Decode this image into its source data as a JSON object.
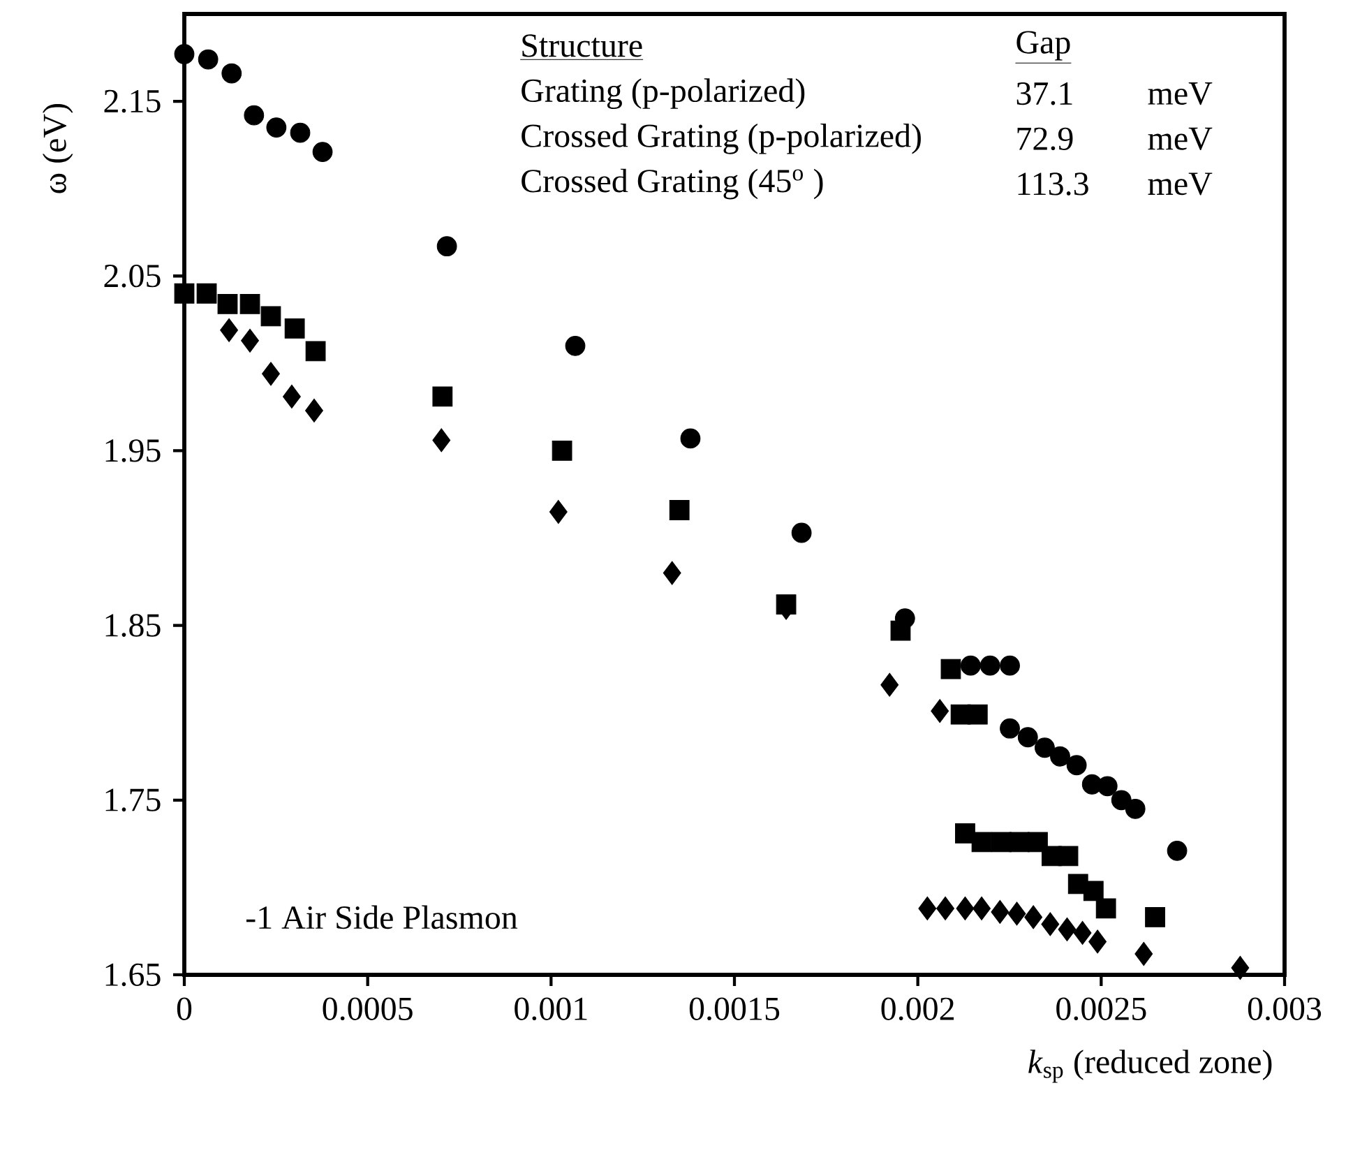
{
  "chart_data": {
    "type": "scatter",
    "xlabel": "*k*$_{sp}$ (reduced zone)",
    "ylabel": "ω (eV)",
    "xlim": [
      0,
      0.003
    ],
    "ylim": [
      1.65,
      2.2
    ],
    "xticks": [
      0,
      0.0005,
      0.001,
      0.0015,
      0.002,
      0.0025,
      0.003
    ],
    "yticks": [
      1.65,
      1.75,
      1.85,
      1.95,
      2.05,
      2.15
    ],
    "grid": false,
    "annotations": [
      "Structure",
      "Gap",
      "Grating   (p-polarized)",
      "37.1",
      "meV",
      "Crossed Grating (p-polarized)",
      "72.9",
      "meV",
      "Crossed Grating (45$^{o}$ )",
      "113.3",
      "meV",
      "-1 Air Side Plasmon"
    ],
    "series": [
      {
        "color": "#000000",
        "marker": "circle",
        "x": [
          0,
          6.5e-05,
          0.000129,
          0.00019,
          0.000251,
          0.000316,
          0.000377,
          0.000716,
          0.001066,
          0.00138,
          0.001683,
          0.001965,
          0.002144,
          0.002197,
          0.002251,
          0.002251,
          0.0023,
          0.002346,
          0.002388,
          0.002433,
          0.002475,
          0.002517,
          0.002555,
          0.002593,
          0.002707
        ],
        "values": [
          2.177,
          2.174,
          2.166,
          2.142,
          2.135,
          2.132,
          2.121,
          2.067,
          2.01,
          1.957,
          1.903,
          1.854,
          1.827,
          1.827,
          1.827,
          1.791,
          1.786,
          1.78,
          1.775,
          1.77,
          1.759,
          1.758,
          1.75,
          1.745,
          1.721
        ]
      },
      {
        "color": "#000000",
        "marker": "square",
        "x": [
          0,
          6.1e-05,
          0.000118,
          0.000179,
          0.000236,
          0.000301,
          0.000358,
          0.000704,
          0.00103,
          0.00135,
          0.001641,
          0.001953,
          0.00209,
          0.002117,
          0.002163,
          0.002129,
          0.002174,
          0.002228,
          0.002277,
          0.002327,
          0.002365,
          0.00241,
          0.002437,
          0.002479,
          0.002513,
          0.002647
        ],
        "values": [
          2.04,
          2.04,
          2.034,
          2.034,
          2.027,
          2.02,
          2.007,
          1.981,
          1.95,
          1.916,
          1.862,
          1.847,
          1.825,
          1.799,
          1.799,
          1.731,
          1.726,
          1.726,
          1.726,
          1.726,
          1.718,
          1.718,
          1.702,
          1.698,
          1.688,
          1.683
        ]
      },
      {
        "color": "#000000",
        "marker": "diamond",
        "x": [
          0.000122,
          0.000179,
          0.000236,
          0.000293,
          0.000354,
          0.000701,
          0.00102,
          0.00133,
          0.001641,
          0.001923,
          0.00206,
          0.002026,
          0.002075,
          0.002129,
          0.002174,
          0.002224,
          0.00227,
          0.002315,
          0.002361,
          0.002407,
          0.002449,
          0.00249,
          0.002616,
          0.002879
        ],
        "values": [
          2.019,
          2.013,
          1.994,
          1.981,
          1.973,
          1.956,
          1.915,
          1.88,
          1.86,
          1.816,
          1.801,
          1.688,
          1.688,
          1.688,
          1.688,
          1.686,
          1.685,
          1.683,
          1.679,
          1.676,
          1.674,
          1.669,
          1.662,
          1.654
        ]
      }
    ]
  }
}
